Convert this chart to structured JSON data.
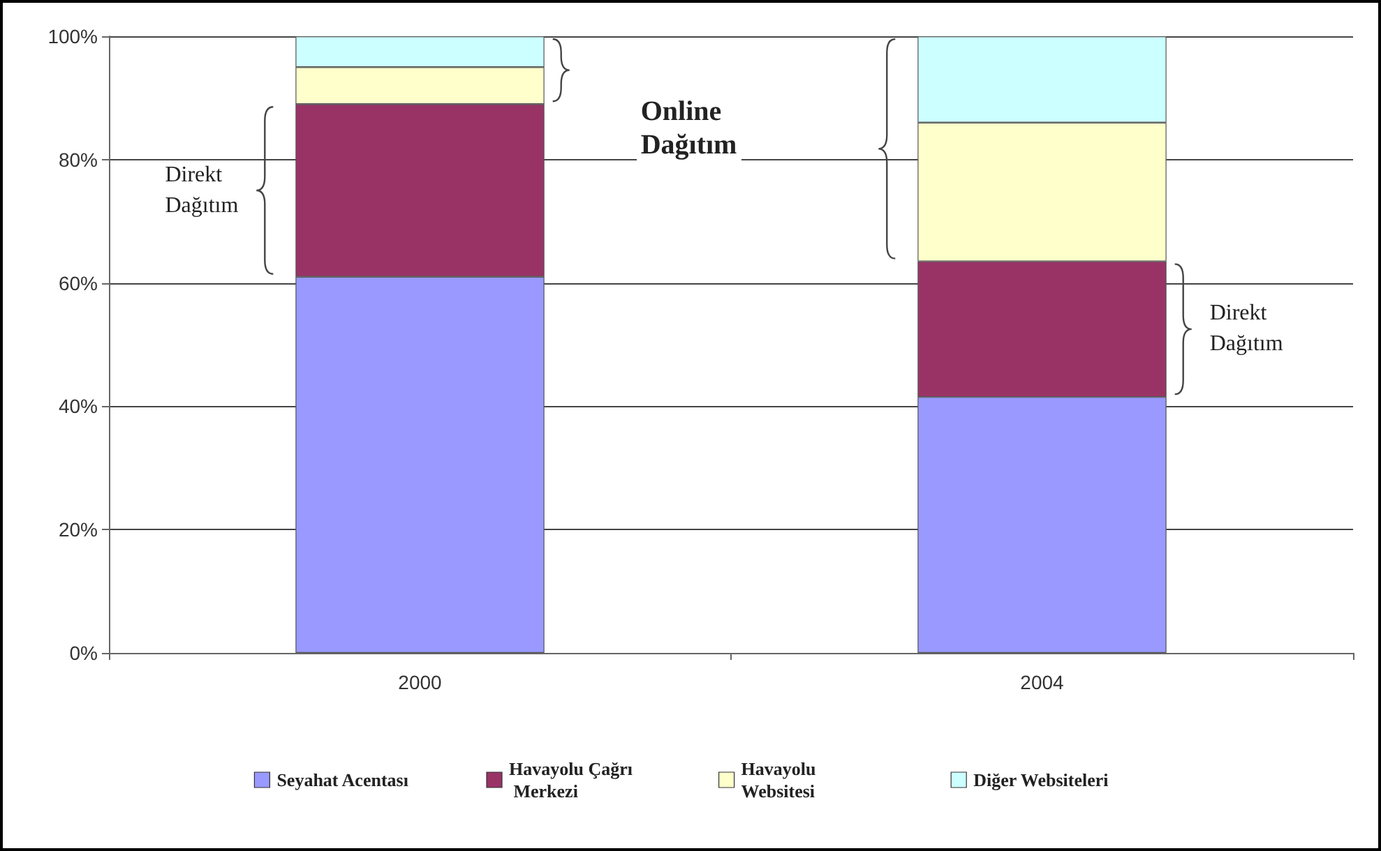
{
  "chart_data": {
    "type": "bar",
    "stacked": true,
    "categories": [
      "2000",
      "2004"
    ],
    "series": [
      {
        "name": "Seyahat Acentası",
        "color": "#9999ff",
        "values": [
          61,
          41.5
        ]
      },
      {
        "name": "Havayolu Çağrı Merkezi",
        "color": "#993366",
        "values": [
          28,
          22
        ]
      },
      {
        "name": "Havayolu Websitesi",
        "color": "#ffffcc",
        "values": [
          6,
          22.5
        ]
      },
      {
        "name": "Diğer Websiteleri",
        "color": "#ccffff",
        "values": [
          5,
          14
        ]
      }
    ],
    "ylim": [
      0,
      100
    ],
    "yticks": [
      {
        "value": 0,
        "label": "0%"
      },
      {
        "value": 20,
        "label": "20%"
      },
      {
        "value": 40,
        "label": "40%"
      },
      {
        "value": 60,
        "label": "60%"
      },
      {
        "value": 80,
        "label": "80%"
      },
      {
        "value": 100,
        "label": "100%"
      }
    ],
    "grid": "y",
    "legend": "bottom",
    "annotations": [
      "Direkt Dağıtım",
      "Online Dağıtım",
      "Direkt Dağıtım"
    ]
  }
}
